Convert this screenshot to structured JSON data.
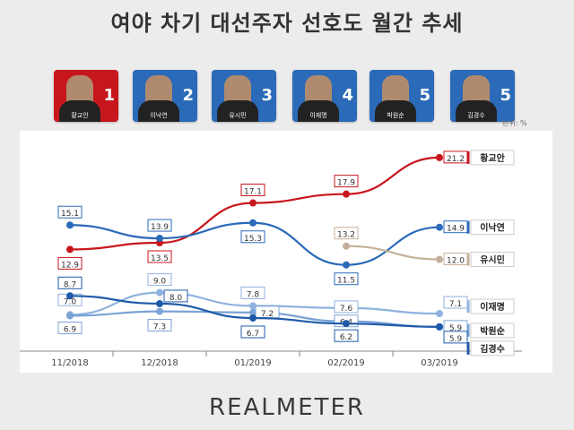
{
  "title": "여야 차기 대선주자 선호도 월간 추세",
  "unit_label": "단위: %",
  "logo": "REALMETER",
  "candidates": [
    {
      "name": "황교안",
      "rank": "1",
      "color": "#c8161d"
    },
    {
      "name": "이낙연",
      "rank": "2",
      "color": "#2a6ab8"
    },
    {
      "name": "유시민",
      "rank": "3",
      "color": "#2a6ab8"
    },
    {
      "name": "이재명",
      "rank": "4",
      "color": "#2a6ab8"
    },
    {
      "name": "박원순",
      "rank": "5",
      "color": "#2a6ab8"
    },
    {
      "name": "김경수",
      "rank": "5",
      "color": "#2a6ab8"
    }
  ],
  "chart_data": {
    "type": "line",
    "title": "여야 차기 대선주자 선호도 월간 추세",
    "categories": [
      "11/2018",
      "12/2018",
      "01/2019",
      "02/2019",
      "03/2019"
    ],
    "ylim": [
      5,
      22
    ],
    "grid": false,
    "legend_position": "right",
    "series": [
      {
        "name": "황교안",
        "color": "#c8161d",
        "values": [
          12.9,
          13.5,
          17.1,
          17.9,
          21.2
        ]
      },
      {
        "name": "이낙연",
        "color": "#2a6ab8",
        "values": [
          15.1,
          13.9,
          15.3,
          11.5,
          14.9
        ]
      },
      {
        "name": "유시민",
        "color": "#c4b09a",
        "values": [
          null,
          null,
          null,
          13.2,
          12.0
        ]
      },
      {
        "name": "이재명",
        "color": "#8fb2e0",
        "values": [
          7.0,
          9.0,
          7.8,
          7.6,
          7.1
        ]
      },
      {
        "name": "박원순",
        "color": "#7aa3d6",
        "values": [
          6.9,
          7.3,
          7.2,
          6.4,
          5.9
        ]
      },
      {
        "name": "김경수",
        "color": "#1f5aa8",
        "values": [
          8.7,
          8.0,
          6.7,
          6.2,
          5.9
        ]
      }
    ]
  }
}
